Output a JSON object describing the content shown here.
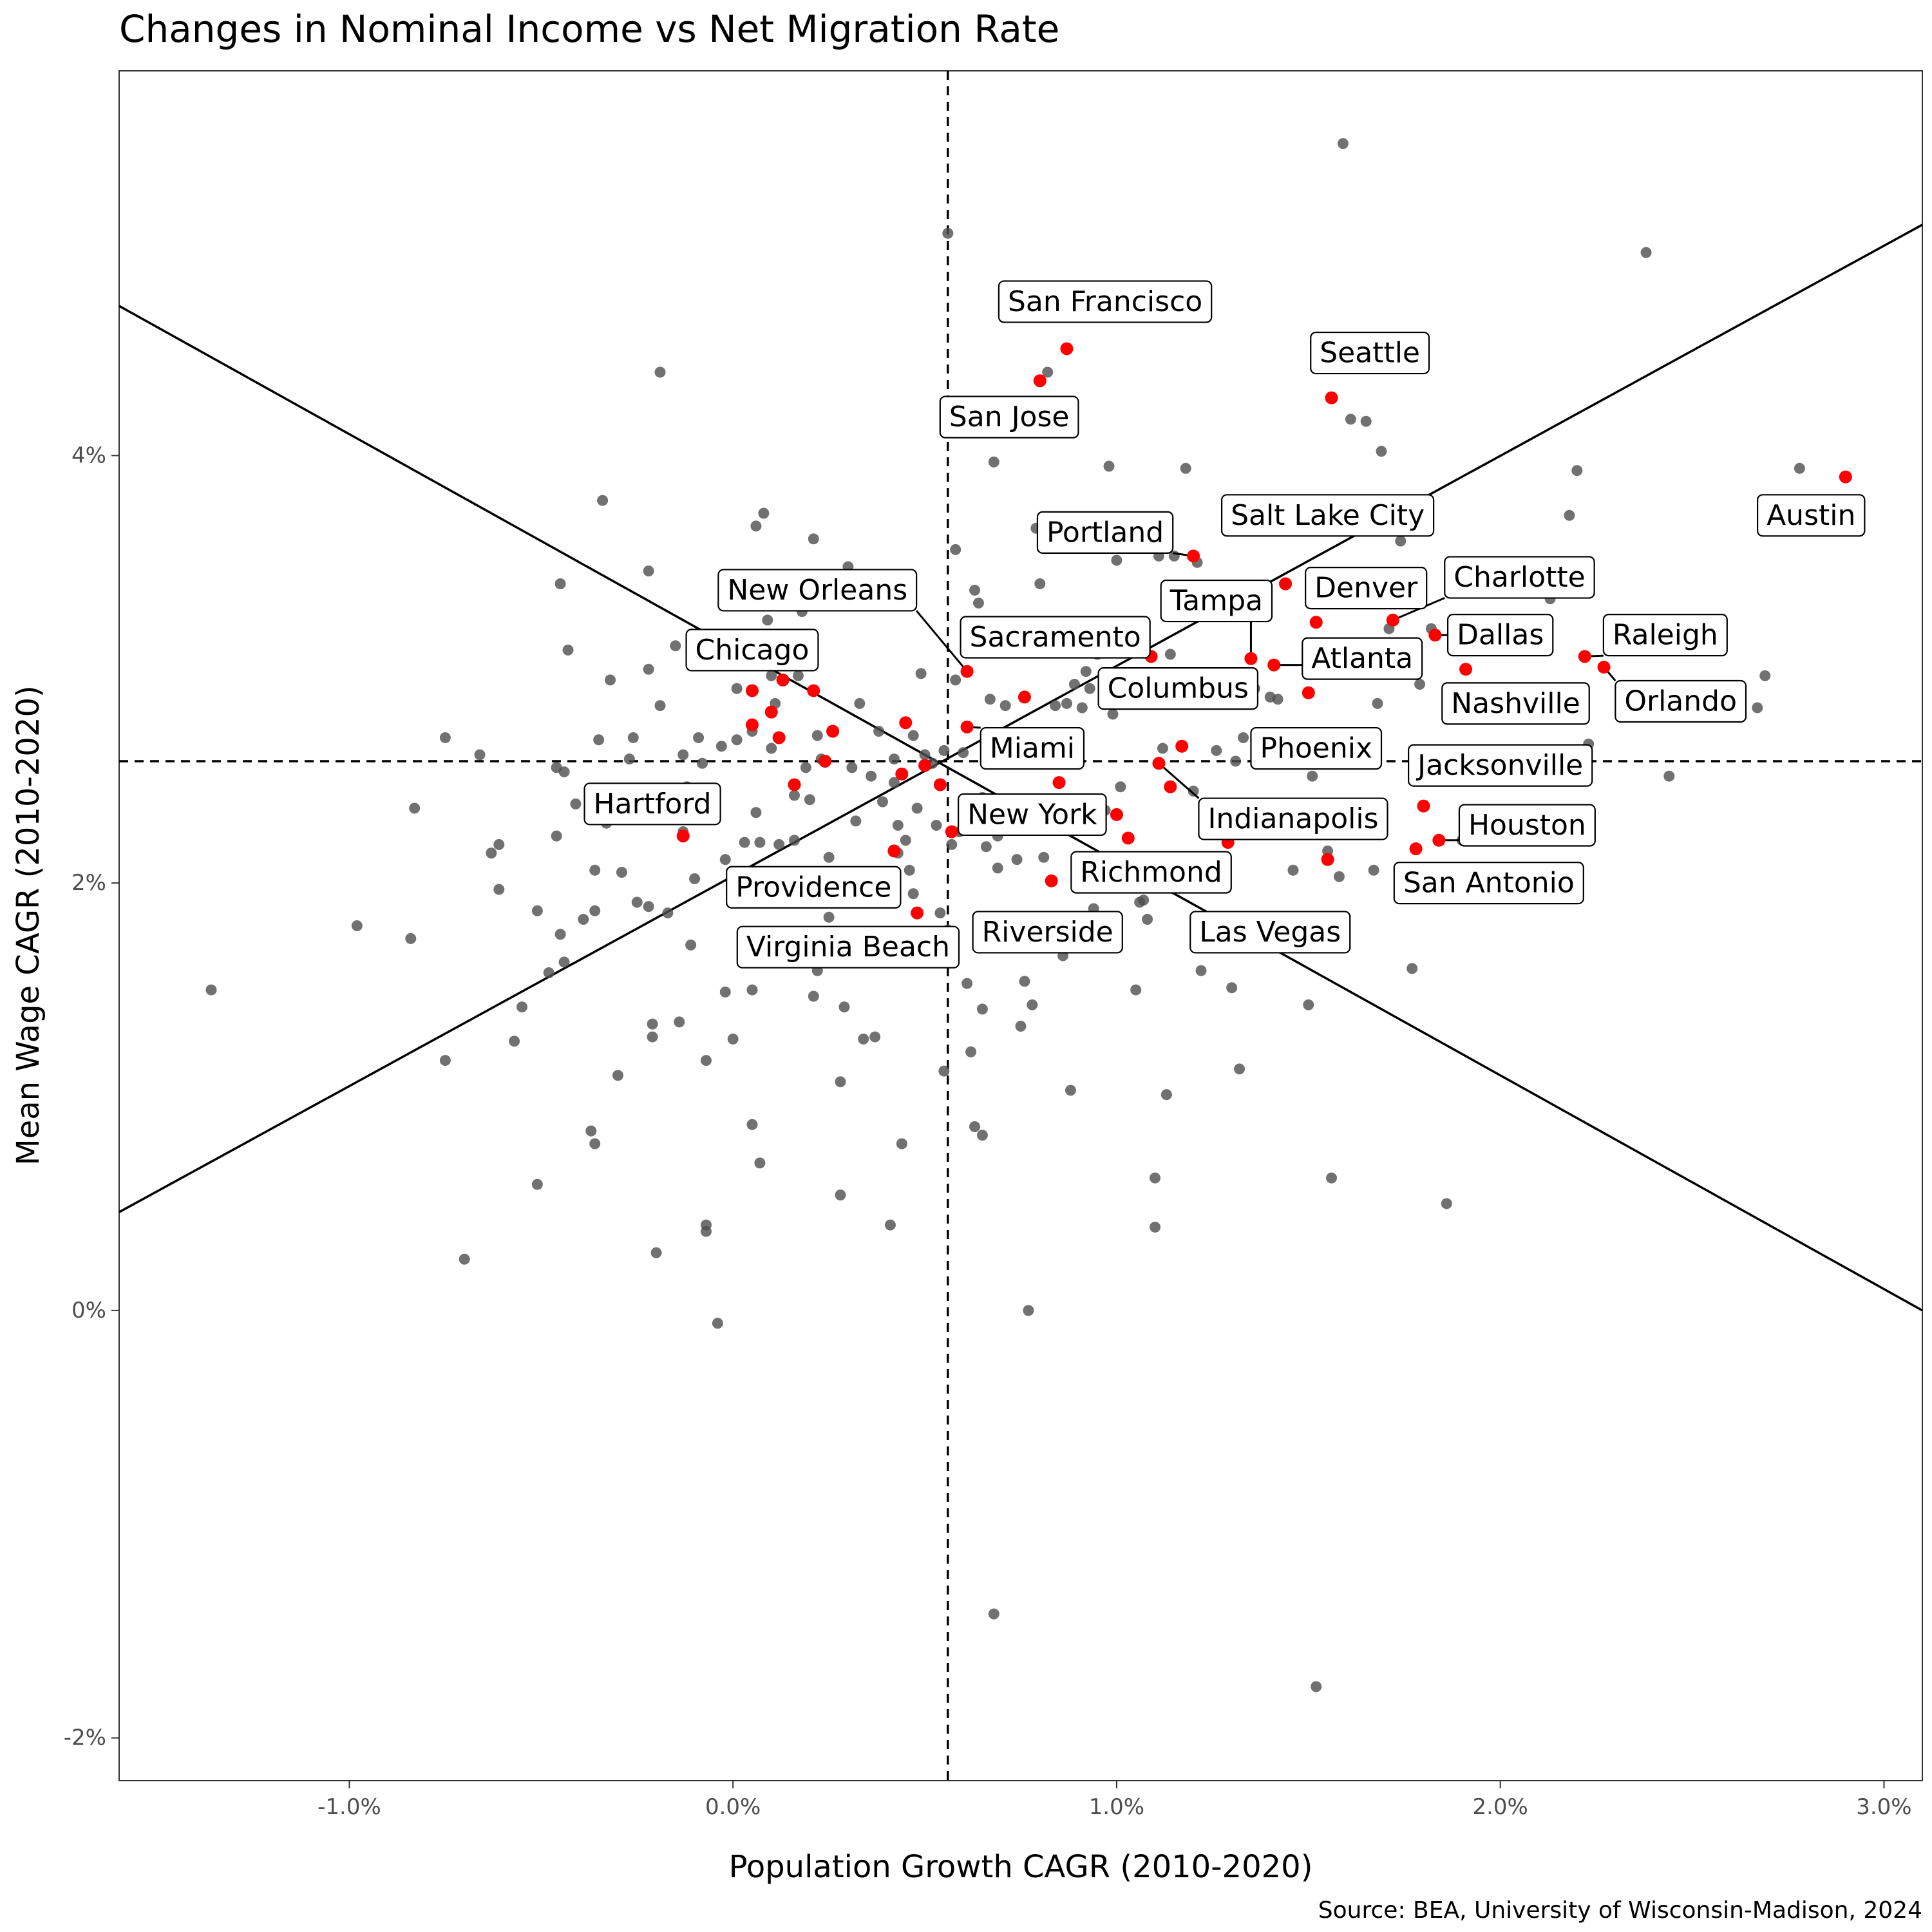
{
  "chart_data": {
    "type": "scatter",
    "title": "Changes in Nominal Income vs Net Migration Rate",
    "xlabel": "Population Growth CAGR (2010-2020)",
    "ylabel": "Mean Wage CAGR (2010-2020)",
    "caption": "Source: BEA, University of Wisconsin-Madison, 2024",
    "xlim": [
      -1.6,
      3.1
    ],
    "ylim": [
      -2.2,
      5.8
    ],
    "x_ticks": [
      -1.0,
      0.0,
      1.0,
      2.0,
      3.0
    ],
    "x_tick_labels": [
      "-1.0%",
      "0.0%",
      "1.0%",
      "2.0%",
      "3.0%"
    ],
    "y_ticks": [
      -2,
      0,
      2,
      4
    ],
    "y_tick_labels": [
      "-2%",
      "0%",
      "2%",
      "4%"
    ],
    "grid": false,
    "reference_lines": {
      "vertical_dashed_x": 0.56,
      "horizontal_dashed_y": 2.57,
      "solid_lines": [
        {
          "x1": -1.6,
          "y1": 0.46,
          "x2": 3.1,
          "y2": 5.08
        },
        {
          "x1": -1.6,
          "y1": 4.7,
          "x2": 3.1,
          "y2": 0.0
        }
      ]
    },
    "colors": {
      "highlight": "#ff0000",
      "other": "#4d4d4d"
    },
    "highlighted": [
      {
        "name": "San Francisco",
        "x": 0.87,
        "y": 4.5,
        "label_x": 0.97,
        "label_y": 4.72
      },
      {
        "name": "San Jose",
        "x": 0.8,
        "y": 4.35,
        "label_x": 0.72,
        "label_y": 4.18
      },
      {
        "name": "Seattle",
        "x": 1.56,
        "y": 4.27,
        "label_x": 1.66,
        "label_y": 4.48
      },
      {
        "name": "Austin",
        "x": 2.9,
        "y": 3.9,
        "label_x": 2.81,
        "label_y": 3.72
      },
      {
        "name": "Portland",
        "x": 1.2,
        "y": 3.53,
        "label_x": 0.97,
        "label_y": 3.64
      },
      {
        "name": "Salt Lake City",
        "x": 1.44,
        "y": 3.4,
        "label_x": 1.55,
        "label_y": 3.72
      },
      {
        "name": "Denver",
        "x": 1.52,
        "y": 3.22,
        "label_x": 1.65,
        "label_y": 3.38
      },
      {
        "name": "Charlotte",
        "x": 1.72,
        "y": 3.23,
        "label_x": 2.05,
        "label_y": 3.43
      },
      {
        "name": "Tampa",
        "x": 1.35,
        "y": 3.05,
        "label_x": 1.26,
        "label_y": 3.32
      },
      {
        "name": "Dallas",
        "x": 1.83,
        "y": 3.16,
        "label_x": 2.0,
        "label_y": 3.16
      },
      {
        "name": "Raleigh",
        "x": 2.22,
        "y": 3.06,
        "label_x": 2.43,
        "label_y": 3.16
      },
      {
        "name": "Orlando",
        "x": 2.27,
        "y": 3.01,
        "label_x": 2.47,
        "label_y": 2.85
      },
      {
        "name": "Atlanta",
        "x": 1.41,
        "y": 3.02,
        "label_x": 1.64,
        "label_y": 3.05
      },
      {
        "name": "Nashville",
        "x": 1.91,
        "y": 3.0,
        "label_x": 2.04,
        "label_y": 2.84
      },
      {
        "name": "New Orleans",
        "x": 0.61,
        "y": 2.99,
        "label_x": 0.22,
        "label_y": 3.37
      },
      {
        "name": "Sacramento",
        "x": 0.76,
        "y": 2.87,
        "label_x": 0.84,
        "label_y": 3.15
      },
      {
        "name": "Chicago",
        "x": 0.13,
        "y": 2.95,
        "label_x": 0.05,
        "label_y": 3.09
      },
      {
        "name": "Columbus",
        "x": 1.17,
        "y": 2.64,
        "label_x": 1.16,
        "label_y": 2.91
      },
      {
        "name": "Phoenix",
        "x": 1.5,
        "y": 2.89,
        "label_x": 1.52,
        "label_y": 2.63
      },
      {
        "name": "Miami",
        "x": 0.61,
        "y": 2.73,
        "label_x": 0.78,
        "label_y": 2.63
      },
      {
        "name": "Jacksonville",
        "x": 1.8,
        "y": 2.36,
        "label_x": 2.0,
        "label_y": 2.55
      },
      {
        "name": "Indianapolis",
        "x": 1.11,
        "y": 2.56,
        "label_x": 1.46,
        "label_y": 2.3
      },
      {
        "name": "Hartford",
        "x": -0.13,
        "y": 2.22,
        "label_x": -0.21,
        "label_y": 2.37
      },
      {
        "name": "New York",
        "x": 0.57,
        "y": 2.24,
        "label_x": 0.78,
        "label_y": 2.32
      },
      {
        "name": "Houston",
        "x": 1.84,
        "y": 2.2,
        "label_x": 2.07,
        "label_y": 2.27
      },
      {
        "name": "Richmond",
        "x": 1.0,
        "y": 2.32,
        "label_x": 1.09,
        "label_y": 2.05
      },
      {
        "name": "San Antonio",
        "x": 1.78,
        "y": 2.16,
        "label_x": 1.97,
        "label_y": 2.0
      },
      {
        "name": "Providence",
        "x": 0.42,
        "y": 2.15,
        "label_x": 0.21,
        "label_y": 1.98
      },
      {
        "name": "Las Vegas",
        "x": 1.55,
        "y": 2.11,
        "label_x": 1.4,
        "label_y": 1.77
      },
      {
        "name": "Riverside",
        "x": 0.83,
        "y": 2.01,
        "label_x": 0.82,
        "label_y": 1.77
      },
      {
        "name": "Virginia Beach",
        "x": 0.48,
        "y": 1.86,
        "label_x": 0.3,
        "label_y": 1.7
      },
      {
        "name": "",
        "x": 0.05,
        "y": 2.9
      },
      {
        "name": "",
        "x": 0.1,
        "y": 2.8
      },
      {
        "name": "",
        "x": 0.12,
        "y": 2.68
      },
      {
        "name": "",
        "x": 0.05,
        "y": 2.74
      },
      {
        "name": "",
        "x": 0.21,
        "y": 2.9
      },
      {
        "name": "",
        "x": 0.26,
        "y": 2.71
      },
      {
        "name": "",
        "x": 0.16,
        "y": 2.46
      },
      {
        "name": "",
        "x": 0.24,
        "y": 2.57
      },
      {
        "name": "",
        "x": 0.45,
        "y": 2.75
      },
      {
        "name": "",
        "x": 0.44,
        "y": 2.51
      },
      {
        "name": "",
        "x": 0.5,
        "y": 2.55
      },
      {
        "name": "",
        "x": 0.54,
        "y": 2.46
      },
      {
        "name": "",
        "x": 0.85,
        "y": 2.47
      },
      {
        "name": "",
        "x": 1.09,
        "y": 3.06
      },
      {
        "name": "",
        "x": 1.14,
        "y": 2.45
      },
      {
        "name": "",
        "x": 1.03,
        "y": 2.21
      },
      {
        "name": "",
        "x": 1.29,
        "y": 2.19
      }
    ],
    "other_points": [
      [
        -1.36,
        1.5
      ],
      [
        -0.98,
        1.8
      ],
      [
        -0.83,
        2.35
      ],
      [
        -0.84,
        1.74
      ],
      [
        -0.75,
        2.68
      ],
      [
        -0.75,
        1.17
      ],
      [
        -0.7,
        0.24
      ],
      [
        -0.66,
        2.6
      ],
      [
        -0.63,
        2.14
      ],
      [
        -0.61,
        2.18
      ],
      [
        -0.61,
        1.97
      ],
      [
        -0.57,
        1.26
      ],
      [
        -0.55,
        1.42
      ],
      [
        -0.51,
        0.59
      ],
      [
        -0.51,
        1.87
      ],
      [
        -0.48,
        1.58
      ],
      [
        -0.46,
        2.54
      ],
      [
        -0.46,
        2.22
      ],
      [
        -0.45,
        3.4
      ],
      [
        -0.45,
        1.76
      ],
      [
        -0.44,
        2.52
      ],
      [
        -0.44,
        1.63
      ],
      [
        -0.43,
        3.09
      ],
      [
        -0.41,
        2.37
      ],
      [
        -0.39,
        1.83
      ],
      [
        -0.37,
        0.84
      ],
      [
        -0.36,
        0.78
      ],
      [
        -0.36,
        1.87
      ],
      [
        -0.36,
        2.06
      ],
      [
        -0.35,
        2.67
      ],
      [
        -0.34,
        3.79
      ],
      [
        -0.33,
        2.28
      ],
      [
        -0.32,
        2.95
      ],
      [
        -0.3,
        1.1
      ],
      [
        -0.29,
        2.05
      ],
      [
        -0.27,
        2.58
      ],
      [
        -0.26,
        2.68
      ],
      [
        -0.25,
        1.91
      ],
      [
        -0.22,
        3.46
      ],
      [
        -0.22,
        3.0
      ],
      [
        -0.22,
        1.89
      ],
      [
        -0.21,
        1.34
      ],
      [
        -0.21,
        1.28
      ],
      [
        -0.2,
        0.27
      ],
      [
        -0.19,
        2.83
      ],
      [
        -0.19,
        4.39
      ],
      [
        -0.17,
        1.86
      ],
      [
        -0.15,
        3.11
      ],
      [
        -0.14,
        1.35
      ],
      [
        -0.13,
        2.24
      ],
      [
        -0.13,
        2.6
      ],
      [
        -0.12,
        2.45
      ],
      [
        -0.11,
        1.71
      ],
      [
        -0.1,
        2.02
      ],
      [
        -0.09,
        2.68
      ],
      [
        -0.08,
        2.56
      ],
      [
        -0.07,
        1.17
      ],
      [
        -0.07,
        0.4
      ],
      [
        -0.07,
        0.37
      ],
      [
        -0.04,
        -0.06
      ],
      [
        -0.03,
        2.64
      ],
      [
        -0.02,
        1.49
      ],
      [
        -0.02,
        2.11
      ],
      [
        0.0,
        1.27
      ],
      [
        0.01,
        2.91
      ],
      [
        0.01,
        2.67
      ],
      [
        0.02,
        1.94
      ],
      [
        0.03,
        2.19
      ],
      [
        0.05,
        0.87
      ],
      [
        0.05,
        1.5
      ],
      [
        0.05,
        2.71
      ],
      [
        0.06,
        3.67
      ],
      [
        0.06,
        2.33
      ],
      [
        0.07,
        2.19
      ],
      [
        0.07,
        0.69
      ],
      [
        0.08,
        3.73
      ],
      [
        0.09,
        3.23
      ],
      [
        0.1,
        2.63
      ],
      [
        0.1,
        2.97
      ],
      [
        0.11,
        2.84
      ],
      [
        0.12,
        2.18
      ],
      [
        0.15,
        1.74
      ],
      [
        0.16,
        2.41
      ],
      [
        0.16,
        2.2
      ],
      [
        0.17,
        2.97
      ],
      [
        0.18,
        3.27
      ],
      [
        0.19,
        2.54
      ],
      [
        0.2,
        2.39
      ],
      [
        0.21,
        3.61
      ],
      [
        0.21,
        1.47
      ],
      [
        0.22,
        1.59
      ],
      [
        0.22,
        2.69
      ],
      [
        0.23,
        2.58
      ],
      [
        0.25,
        1.84
      ],
      [
        0.25,
        2.12
      ],
      [
        0.27,
        1.91
      ],
      [
        0.28,
        1.07
      ],
      [
        0.28,
        0.54
      ],
      [
        0.29,
        1.42
      ],
      [
        0.3,
        3.48
      ],
      [
        0.31,
        2.54
      ],
      [
        0.32,
        2.29
      ],
      [
        0.33,
        2.84
      ],
      [
        0.34,
        1.27
      ],
      [
        0.36,
        2.5
      ],
      [
        0.37,
        1.28
      ],
      [
        0.38,
        2.71
      ],
      [
        0.39,
        2.38
      ],
      [
        0.41,
        0.4
      ],
      [
        0.42,
        2.58
      ],
      [
        0.42,
        2.47
      ],
      [
        0.43,
        2.27
      ],
      [
        0.43,
        2.14
      ],
      [
        0.44,
        0.78
      ],
      [
        0.45,
        2.2
      ],
      [
        0.46,
        2.06
      ],
      [
        0.47,
        2.69
      ],
      [
        0.47,
        1.95
      ],
      [
        0.48,
        2.35
      ],
      [
        0.49,
        2.98
      ],
      [
        0.5,
        2.6
      ],
      [
        0.52,
        2.56
      ],
      [
        0.53,
        2.27
      ],
      [
        0.54,
        1.86
      ],
      [
        0.55,
        1.12
      ],
      [
        0.55,
        2.62
      ],
      [
        0.56,
        5.04
      ],
      [
        0.56,
        1.78
      ],
      [
        0.57,
        2.18
      ],
      [
        0.58,
        2.95
      ],
      [
        0.58,
        3.56
      ],
      [
        0.59,
        2.24
      ],
      [
        0.6,
        2.61
      ],
      [
        0.61,
        1.53
      ],
      [
        0.62,
        1.21
      ],
      [
        0.63,
        0.86
      ],
      [
        0.63,
        3.37
      ],
      [
        0.64,
        3.31
      ],
      [
        0.65,
        0.82
      ],
      [
        0.65,
        2.4
      ],
      [
        0.65,
        1.41
      ],
      [
        0.66,
        2.17
      ],
      [
        0.67,
        2.86
      ],
      [
        0.68,
        3.97
      ],
      [
        0.68,
        -1.42
      ],
      [
        0.69,
        2.22
      ],
      [
        0.69,
        2.07
      ],
      [
        0.7,
        2.58
      ],
      [
        0.71,
        2.83
      ],
      [
        0.72,
        2.26
      ],
      [
        0.74,
        2.11
      ],
      [
        0.75,
        1.33
      ],
      [
        0.76,
        1.54
      ],
      [
        0.77,
        0.0
      ],
      [
        0.78,
        1.43
      ],
      [
        0.79,
        3.66
      ],
      [
        0.8,
        3.4
      ],
      [
        0.8,
        2.67
      ],
      [
        0.81,
        2.12
      ],
      [
        0.82,
        4.39
      ],
      [
        0.84,
        2.83
      ],
      [
        0.86,
        1.66
      ],
      [
        0.87,
        2.84
      ],
      [
        0.88,
        1.03
      ],
      [
        0.89,
        2.93
      ],
      [
        0.9,
        1.82
      ],
      [
        0.91,
        2.82
      ],
      [
        0.92,
        2.99
      ],
      [
        0.93,
        2.91
      ],
      [
        0.94,
        1.88
      ],
      [
        0.95,
        3.07
      ],
      [
        0.97,
        2.34
      ],
      [
        0.98,
        3.95
      ],
      [
        0.99,
        2.79
      ],
      [
        1.0,
        3.51
      ],
      [
        1.01,
        2.45
      ],
      [
        1.05,
        1.5
      ],
      [
        1.06,
        1.91
      ],
      [
        1.06,
        3.18
      ],
      [
        1.07,
        1.92
      ],
      [
        1.08,
        1.83
      ],
      [
        1.1,
        0.62
      ],
      [
        1.1,
        0.39
      ],
      [
        1.11,
        3.53
      ],
      [
        1.12,
        2.63
      ],
      [
        1.13,
        1.01
      ],
      [
        1.14,
        3.07
      ],
      [
        1.15,
        3.53
      ],
      [
        1.18,
        3.94
      ],
      [
        1.2,
        2.43
      ],
      [
        1.21,
        3.5
      ],
      [
        1.22,
        1.59
      ],
      [
        1.24,
        2.95
      ],
      [
        1.26,
        2.62
      ],
      [
        1.27,
        2.32
      ],
      [
        1.3,
        1.51
      ],
      [
        1.31,
        2.57
      ],
      [
        1.32,
        1.13
      ],
      [
        1.33,
        2.68
      ],
      [
        1.36,
        2.91
      ],
      [
        1.4,
        2.87
      ],
      [
        1.42,
        2.86
      ],
      [
        1.46,
        2.06
      ],
      [
        1.5,
        1.43
      ],
      [
        1.51,
        2.5
      ],
      [
        1.52,
        -1.76
      ],
      [
        1.55,
        2.15
      ],
      [
        1.56,
        0.62
      ],
      [
        1.58,
        2.03
      ],
      [
        1.59,
        5.46
      ],
      [
        1.61,
        4.17
      ],
      [
        1.65,
        4.16
      ],
      [
        1.67,
        2.06
      ],
      [
        1.68,
        2.84
      ],
      [
        1.69,
        4.02
      ],
      [
        1.71,
        3.19
      ],
      [
        1.74,
        3.6
      ],
      [
        1.77,
        1.6
      ],
      [
        1.79,
        2.93
      ],
      [
        1.82,
        3.19
      ],
      [
        1.86,
        0.5
      ],
      [
        1.9,
        2.2
      ],
      [
        2.13,
        3.33
      ],
      [
        2.17,
        3.36
      ],
      [
        2.18,
        3.72
      ],
      [
        2.2,
        3.93
      ],
      [
        2.23,
        2.65
      ],
      [
        2.38,
        4.95
      ],
      [
        2.44,
        2.5
      ],
      [
        2.67,
        2.82
      ],
      [
        2.69,
        2.97
      ],
      [
        2.78,
        3.94
      ]
    ]
  }
}
